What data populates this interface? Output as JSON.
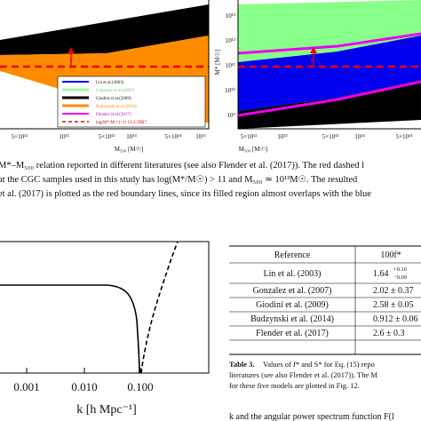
{
  "figure_top": {
    "left_panel": {
      "xticks": [
        "5×10¹²",
        "10¹³",
        "5×10¹³",
        "10¹⁴",
        "5×10¹⁴",
        "10¹⁵"
      ],
      "xlabel": "M₅₀₀ [M☉]",
      "legend": [
        "Lin et al.(2003)",
        "Gonzalez et al.(2007)",
        "Giodini et al.(2009)",
        "Budzynski et al.(2014)",
        "Flender et al.(2017)",
        "log(M*/M☉)>11 CGC/DR7"
      ]
    },
    "right_panel": {
      "ylabel": "M* [M☉]",
      "yticks": [
        "10¹³",
        "10¹²",
        "10¹¹",
        "10¹⁰",
        "10⁹"
      ],
      "xticks": [
        "5×10¹²",
        "10¹³",
        "5×10¹³",
        "10¹⁴",
        "5×10¹⁴"
      ],
      "xlabel": "M₅₀₀ [M☉]"
    },
    "caption": [
      "M*–M₅₀₀ relation reported in different literatures (see also Flender et al. (2017)). The red dashed l",
      "at the CGC samples used in this study has log(M*/M☉) > 11 and M₅₀₀ ≃ 10¹³M☉. The resulted",
      "et al. (2017) is plotted as the red boundary lines, since its filled region almost overlaps with the blue"
    ]
  },
  "figure_bottom": {
    "xticks": [
      "0.001",
      "0.010",
      "0.100"
    ],
    "xlabel": "k [h Mpc⁻¹]"
  },
  "table": {
    "header": [
      "Reference",
      "100f*"
    ],
    "rows": [
      [
        "Lin et al. (2003)",
        {
          "central": "1.64",
          "plus": "+0.10",
          "minus": "−0.09"
        }
      ],
      [
        "Gonzalez et al. (2007)",
        "2.02 ± 0.37"
      ],
      [
        "Giodini et al. (2009)",
        "2.58 ± 0.05"
      ],
      [
        "Budzynski et al. (2014)",
        "0.912 ± 0.06"
      ],
      [
        "Flender et al. (2017)",
        "2.6 ± 0.3"
      ]
    ],
    "caption_label": "Table 3.",
    "caption": [
      "Values of f* and S* for Eq. (15) repo",
      "literatures (see also Flender et al. (2017)). The M",
      "for these five models are plotted in Fig. 12."
    ]
  },
  "body_text": "k and the angular power spectrum function F(l"
}
